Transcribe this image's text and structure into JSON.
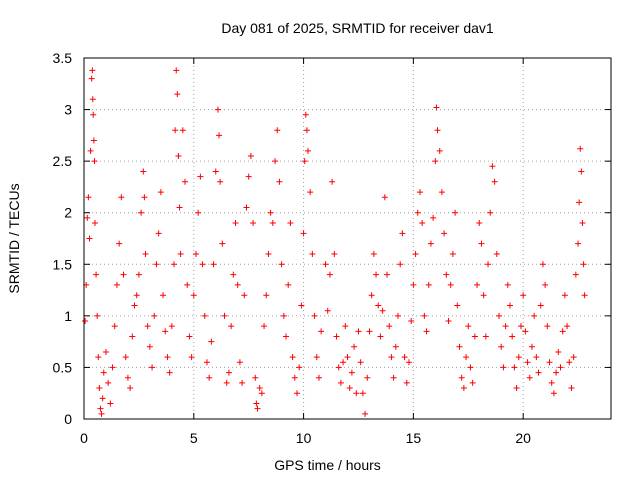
{
  "chart_data": {
    "type": "scatter",
    "title": "Day 081 of 2025, SRMTID for receiver dav1",
    "xlabel": "GPS time / hours",
    "ylabel": "SRMTID / TECUs",
    "xlim": [
      0,
      24
    ],
    "ylim": [
      0,
      3.5
    ],
    "x_ticks": [
      0,
      5,
      10,
      15,
      20
    ],
    "x_tick_labels": [
      "0",
      "5",
      "10",
      "15",
      "20"
    ],
    "y_ticks": [
      0,
      0.5,
      1,
      1.5,
      2,
      2.5,
      3,
      3.5
    ],
    "y_tick_labels": [
      "0",
      "0.5",
      "1",
      "1.5",
      "2",
      "2.5",
      "3",
      "3.5"
    ],
    "grid": true,
    "marker": "+",
    "marker_color": "#ff0000",
    "series": [
      {
        "name": "SRMTID",
        "points": [
          [
            0.05,
            0.95
          ],
          [
            0.1,
            1.3
          ],
          [
            0.15,
            1.95
          ],
          [
            0.2,
            2.15
          ],
          [
            0.25,
            1.75
          ],
          [
            0.3,
            2.6
          ],
          [
            0.35,
            3.3
          ],
          [
            0.38,
            3.38
          ],
          [
            0.4,
            3.1
          ],
          [
            0.42,
            2.95
          ],
          [
            0.45,
            2.7
          ],
          [
            0.48,
            2.5
          ],
          [
            0.5,
            1.9
          ],
          [
            0.55,
            1.4
          ],
          [
            0.6,
            1.0
          ],
          [
            0.65,
            0.6
          ],
          [
            0.7,
            0.3
          ],
          [
            0.75,
            0.1
          ],
          [
            0.8,
            0.05
          ],
          [
            0.85,
            0.2
          ],
          [
            0.9,
            0.45
          ],
          [
            1.0,
            0.65
          ],
          [
            1.1,
            0.35
          ],
          [
            1.2,
            0.15
          ],
          [
            1.3,
            0.5
          ],
          [
            1.4,
            0.9
          ],
          [
            1.5,
            1.3
          ],
          [
            1.6,
            1.7
          ],
          [
            1.7,
            2.15
          ],
          [
            1.8,
            1.4
          ],
          [
            1.9,
            0.6
          ],
          [
            2.0,
            0.4
          ],
          [
            2.1,
            0.3
          ],
          [
            2.2,
            0.8
          ],
          [
            2.3,
            1.1
          ],
          [
            2.4,
            1.2
          ],
          [
            2.5,
            1.4
          ],
          [
            2.6,
            2.0
          ],
          [
            2.7,
            2.4
          ],
          [
            2.75,
            2.15
          ],
          [
            2.8,
            1.6
          ],
          [
            2.9,
            0.9
          ],
          [
            3.0,
            0.7
          ],
          [
            3.1,
            0.5
          ],
          [
            3.2,
            1.0
          ],
          [
            3.3,
            1.5
          ],
          [
            3.4,
            1.8
          ],
          [
            3.5,
            2.2
          ],
          [
            3.6,
            1.2
          ],
          [
            3.7,
            0.85
          ],
          [
            3.8,
            0.6
          ],
          [
            3.9,
            0.45
          ],
          [
            4.0,
            0.9
          ],
          [
            4.1,
            1.5
          ],
          [
            4.15,
            2.8
          ],
          [
            4.2,
            3.38
          ],
          [
            4.25,
            3.15
          ],
          [
            4.3,
            2.55
          ],
          [
            4.35,
            2.05
          ],
          [
            4.4,
            1.6
          ],
          [
            4.5,
            2.8
          ],
          [
            4.6,
            2.3
          ],
          [
            4.7,
            1.3
          ],
          [
            4.8,
            0.8
          ],
          [
            4.9,
            0.6
          ],
          [
            5.0,
            1.2
          ],
          [
            5.1,
            1.6
          ],
          [
            5.2,
            2.0
          ],
          [
            5.3,
            2.35
          ],
          [
            5.4,
            1.5
          ],
          [
            5.5,
            1.0
          ],
          [
            5.6,
            0.55
          ],
          [
            5.7,
            0.4
          ],
          [
            5.8,
            0.75
          ],
          [
            5.9,
            1.5
          ],
          [
            6.0,
            2.4
          ],
          [
            6.1,
            3.0
          ],
          [
            6.15,
            2.75
          ],
          [
            6.2,
            2.3
          ],
          [
            6.3,
            1.7
          ],
          [
            6.4,
            1.0
          ],
          [
            6.5,
            0.35
          ],
          [
            6.6,
            0.45
          ],
          [
            6.7,
            0.9
          ],
          [
            6.8,
            1.4
          ],
          [
            6.9,
            1.9
          ],
          [
            7.0,
            1.3
          ],
          [
            7.1,
            0.55
          ],
          [
            7.2,
            0.35
          ],
          [
            7.3,
            1.2
          ],
          [
            7.4,
            2.05
          ],
          [
            7.5,
            2.35
          ],
          [
            7.6,
            2.55
          ],
          [
            7.7,
            1.9
          ],
          [
            7.8,
            0.4
          ],
          [
            7.85,
            0.15
          ],
          [
            7.9,
            0.1
          ],
          [
            8.0,
            0.3
          ],
          [
            8.1,
            0.25
          ],
          [
            8.2,
            0.9
          ],
          [
            8.3,
            1.2
          ],
          [
            8.4,
            1.6
          ],
          [
            8.5,
            2.0
          ],
          [
            8.6,
            1.9
          ],
          [
            8.7,
            2.5
          ],
          [
            8.8,
            2.8
          ],
          [
            8.9,
            2.3
          ],
          [
            9.0,
            1.5
          ],
          [
            9.1,
            1.0
          ],
          [
            9.2,
            0.8
          ],
          [
            9.3,
            1.3
          ],
          [
            9.4,
            1.9
          ],
          [
            9.5,
            0.6
          ],
          [
            9.6,
            0.4
          ],
          [
            9.7,
            0.25
          ],
          [
            9.8,
            0.5
          ],
          [
            9.9,
            1.1
          ],
          [
            10.0,
            1.8
          ],
          [
            10.05,
            2.5
          ],
          [
            10.1,
            2.95
          ],
          [
            10.15,
            2.8
          ],
          [
            10.2,
            2.6
          ],
          [
            10.3,
            2.2
          ],
          [
            10.4,
            1.6
          ],
          [
            10.5,
            1.0
          ],
          [
            10.6,
            0.6
          ],
          [
            10.7,
            0.4
          ],
          [
            10.8,
            0.85
          ],
          [
            11.0,
            1.5
          ],
          [
            11.1,
            1.05
          ],
          [
            11.2,
            1.4
          ],
          [
            11.3,
            2.3
          ],
          [
            11.4,
            1.6
          ],
          [
            11.5,
            0.8
          ],
          [
            11.6,
            0.5
          ],
          [
            11.7,
            0.35
          ],
          [
            11.8,
            0.55
          ],
          [
            11.9,
            0.9
          ],
          [
            12.0,
            0.6
          ],
          [
            12.1,
            0.3
          ],
          [
            12.2,
            0.45
          ],
          [
            12.3,
            0.7
          ],
          [
            12.4,
            0.25
          ],
          [
            12.5,
            0.85
          ],
          [
            12.6,
            0.55
          ],
          [
            12.7,
            0.25
          ],
          [
            12.8,
            0.05
          ],
          [
            12.9,
            0.4
          ],
          [
            13.0,
            0.85
          ],
          [
            13.1,
            1.2
          ],
          [
            13.2,
            1.6
          ],
          [
            13.3,
            1.4
          ],
          [
            13.4,
            1.1
          ],
          [
            13.5,
            0.8
          ],
          [
            13.6,
            1.05
          ],
          [
            13.7,
            2.15
          ],
          [
            13.8,
            1.4
          ],
          [
            13.9,
            0.9
          ],
          [
            14.0,
            0.6
          ],
          [
            14.1,
            0.4
          ],
          [
            14.2,
            0.7
          ],
          [
            14.3,
            1.0
          ],
          [
            14.4,
            1.5
          ],
          [
            14.5,
            1.8
          ],
          [
            14.6,
            0.6
          ],
          [
            14.7,
            0.35
          ],
          [
            14.8,
            0.55
          ],
          [
            14.9,
            0.95
          ],
          [
            15.0,
            1.3
          ],
          [
            15.1,
            1.6
          ],
          [
            15.2,
            2.0
          ],
          [
            15.3,
            2.2
          ],
          [
            15.4,
            1.9
          ],
          [
            15.5,
            1.0
          ],
          [
            15.6,
            0.85
          ],
          [
            15.7,
            1.3
          ],
          [
            15.8,
            1.7
          ],
          [
            15.9,
            1.95
          ],
          [
            16.0,
            2.5
          ],
          [
            16.05,
            3.02
          ],
          [
            16.1,
            2.8
          ],
          [
            16.2,
            2.6
          ],
          [
            16.3,
            2.2
          ],
          [
            16.4,
            1.8
          ],
          [
            16.5,
            1.4
          ],
          [
            16.6,
            0.95
          ],
          [
            16.7,
            1.3
          ],
          [
            16.8,
            1.6
          ],
          [
            16.9,
            2.0
          ],
          [
            17.0,
            1.1
          ],
          [
            17.1,
            0.7
          ],
          [
            17.2,
            0.4
          ],
          [
            17.3,
            0.3
          ],
          [
            17.4,
            0.6
          ],
          [
            17.5,
            0.9
          ],
          [
            17.6,
            0.5
          ],
          [
            17.7,
            0.35
          ],
          [
            17.8,
            0.8
          ],
          [
            17.9,
            1.3
          ],
          [
            18.0,
            1.9
          ],
          [
            18.1,
            1.7
          ],
          [
            18.2,
            1.2
          ],
          [
            18.3,
            0.8
          ],
          [
            18.4,
            1.5
          ],
          [
            18.5,
            2.0
          ],
          [
            18.6,
            2.45
          ],
          [
            18.7,
            2.3
          ],
          [
            18.8,
            1.6
          ],
          [
            18.9,
            1.0
          ],
          [
            19.0,
            0.7
          ],
          [
            19.1,
            0.5
          ],
          [
            19.2,
            0.9
          ],
          [
            19.3,
            1.3
          ],
          [
            19.4,
            1.1
          ],
          [
            19.5,
            0.8
          ],
          [
            19.6,
            0.5
          ],
          [
            19.7,
            0.3
          ],
          [
            19.8,
            0.6
          ],
          [
            19.9,
            0.9
          ],
          [
            20.0,
            1.2
          ],
          [
            20.1,
            0.85
          ],
          [
            20.2,
            0.55
          ],
          [
            20.3,
            0.4
          ],
          [
            20.4,
            0.7
          ],
          [
            20.5,
            1.0
          ],
          [
            20.6,
            0.6
          ],
          [
            20.7,
            0.45
          ],
          [
            20.8,
            1.1
          ],
          [
            20.9,
            1.5
          ],
          [
            21.0,
            1.3
          ],
          [
            21.1,
            0.9
          ],
          [
            21.2,
            0.55
          ],
          [
            21.3,
            0.35
          ],
          [
            21.4,
            0.25
          ],
          [
            21.5,
            0.45
          ],
          [
            21.6,
            0.65
          ],
          [
            21.7,
            0.5
          ],
          [
            21.8,
            0.85
          ],
          [
            21.9,
            1.2
          ],
          [
            22.0,
            0.9
          ],
          [
            22.1,
            0.55
          ],
          [
            22.2,
            0.3
          ],
          [
            22.3,
            0.6
          ],
          [
            22.4,
            1.4
          ],
          [
            22.5,
            1.7
          ],
          [
            22.55,
            2.1
          ],
          [
            22.6,
            2.62
          ],
          [
            22.65,
            2.4
          ],
          [
            22.7,
            1.9
          ],
          [
            22.75,
            1.5
          ],
          [
            22.8,
            1.2
          ]
        ]
      }
    ]
  }
}
